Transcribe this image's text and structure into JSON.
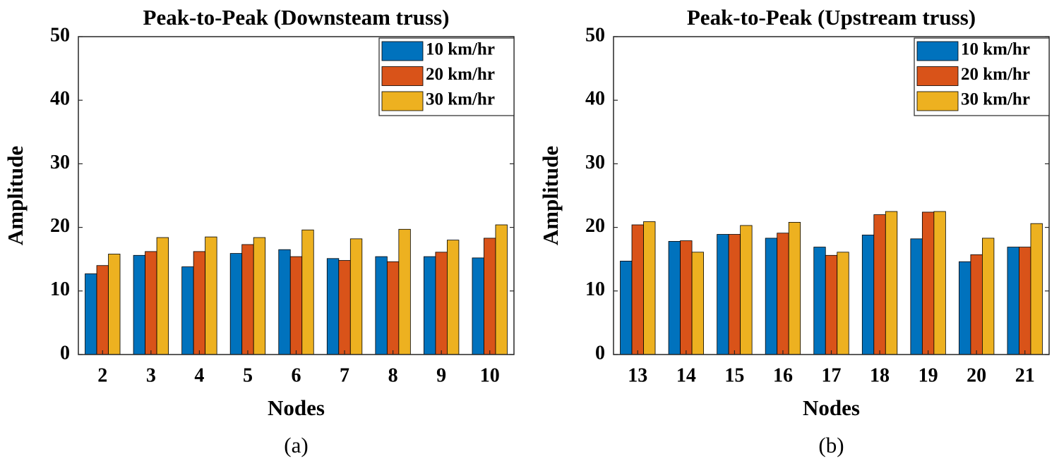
{
  "chart_data": [
    {
      "type": "bar",
      "title": "Peak-to-Peak (Downsteam truss)",
      "xlabel": "Nodes",
      "ylabel": "Amplitude",
      "caption": "(a)",
      "categories": [
        "2",
        "3",
        "4",
        "5",
        "6",
        "7",
        "8",
        "9",
        "10"
      ],
      "series": [
        {
          "name": "10 km/hr",
          "color": "#0072bd",
          "values": [
            12.7,
            15.6,
            13.8,
            15.9,
            16.5,
            15.1,
            15.4,
            15.4,
            15.2
          ]
        },
        {
          "name": "20 km/hr",
          "color": "#d95319",
          "values": [
            14.0,
            16.2,
            16.2,
            17.3,
            15.4,
            14.8,
            14.6,
            16.1,
            18.3
          ]
        },
        {
          "name": "30 km/hr",
          "color": "#edb120",
          "values": [
            15.8,
            18.4,
            18.5,
            18.4,
            19.6,
            18.2,
            19.7,
            18.0,
            20.4
          ]
        }
      ],
      "ylim": [
        0,
        50
      ],
      "yticks": [
        0,
        10,
        20,
        30,
        40,
        50
      ],
      "legend": "top-right"
    },
    {
      "type": "bar",
      "title": "Peak-to-Peak (Upstream truss)",
      "xlabel": "Nodes",
      "ylabel": "Amplitude",
      "caption": "(b)",
      "categories": [
        "13",
        "14",
        "15",
        "16",
        "17",
        "18",
        "19",
        "20",
        "21"
      ],
      "series": [
        {
          "name": "10 km/hr",
          "color": "#0072bd",
          "values": [
            14.7,
            17.8,
            18.9,
            18.3,
            16.9,
            18.8,
            18.2,
            14.6,
            16.9
          ]
        },
        {
          "name": "20 km/hr",
          "color": "#d95319",
          "values": [
            20.4,
            17.9,
            18.9,
            19.1,
            15.6,
            22.0,
            22.4,
            15.7,
            16.9
          ]
        },
        {
          "name": "30 km/hr",
          "color": "#edb120",
          "values": [
            20.9,
            16.1,
            20.3,
            20.8,
            16.1,
            22.5,
            22.5,
            18.3,
            20.6
          ]
        }
      ],
      "ylim": [
        0,
        50
      ],
      "yticks": [
        0,
        10,
        20,
        30,
        40,
        50
      ],
      "legend": "top-right"
    }
  ]
}
